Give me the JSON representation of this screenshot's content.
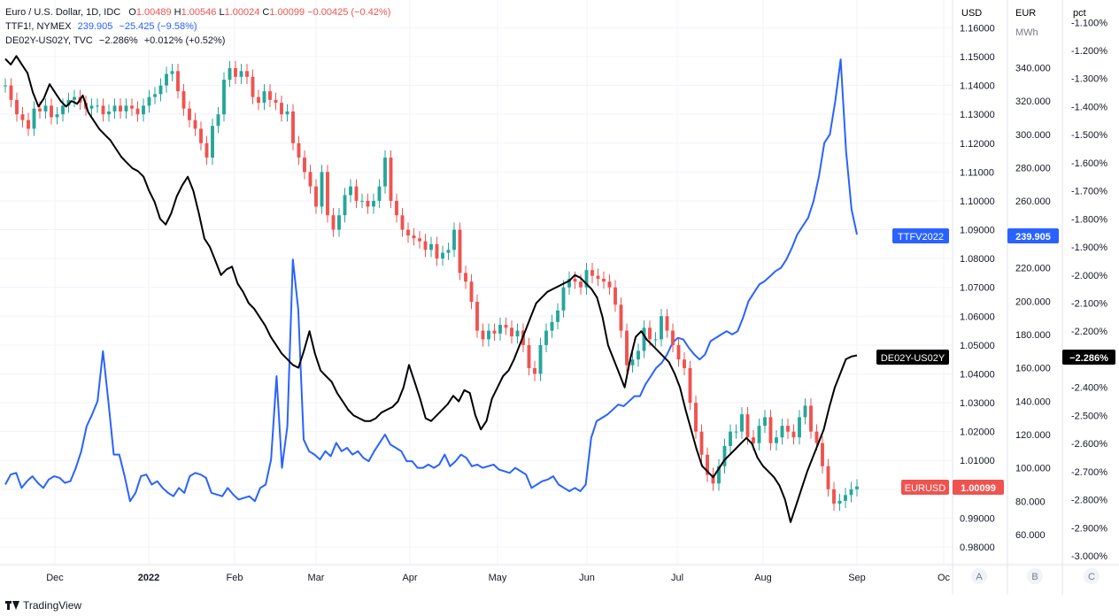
{
  "legend": {
    "eurusd": {
      "title": "Euro / U.S. Dollar, 1D, IDC",
      "o_label": "O",
      "o": "1.00489",
      "h_label": "H",
      "h": "1.00546",
      "l_label": "L",
      "l": "1.00024",
      "c_label": "C",
      "c": "1.00099",
      "chg": "−0.00425 (−0.42%)"
    },
    "ttf": {
      "title": "TTF1!, NYMEX",
      "value": "239.905",
      "chg": "−25.425 (−9.58%)"
    },
    "spread": {
      "title": "DE02Y-US02Y, TVC",
      "value": "−2.286%",
      "chg": "+0.012% (+0.52%)"
    }
  },
  "axes": {
    "a_header": "USD",
    "b_header": "EUR",
    "b_subheader": "MWh",
    "c_header": "pct",
    "a_button": "A",
    "b_button": "B",
    "c_button": "C"
  },
  "labels": {
    "ttf_tag": "TTFV2022",
    "ttf_price": "239.905",
    "spread_tag": "DE02Y-US02Y",
    "spread_price": "−2.286%",
    "eurusd_tag": "EURUSD",
    "eurusd_price": "1.00099"
  },
  "branding": {
    "name": "TradingView"
  },
  "colors": {
    "up": "#26a69a",
    "down": "#ef5350",
    "ttf": "#2962ff",
    "spread": "#000000",
    "grid": "#f0f3fa",
    "axis_text": "#131722"
  },
  "chart_data": {
    "type": "line",
    "x_ticks": [
      "Dec",
      "2022",
      "Feb",
      "Mar",
      "Apr",
      "May",
      "Jun",
      "Jul",
      "Aug",
      "Sep",
      "Oc"
    ],
    "usd_axis": {
      "ticks": [
        "1.16000",
        "1.15000",
        "1.14000",
        "1.13000",
        "1.12000",
        "1.11000",
        "1.10000",
        "1.09000",
        "1.08000",
        "1.07000",
        "1.06000",
        "1.05000",
        "1.04000",
        "1.03000",
        "1.02000",
        "1.01000",
        "1.00000",
        "0.99000",
        "0.98000"
      ],
      "range": [
        0.975,
        1.165
      ]
    },
    "eur_axis": {
      "ticks": [
        "340.000",
        "320.000",
        "300.000",
        "280.000",
        "260.000",
        "240.000",
        "220.000",
        "200.000",
        "180.000",
        "160.000",
        "140.000",
        "120.000",
        "100.000",
        "80.000",
        "60.000"
      ],
      "range": [
        50,
        370
      ]
    },
    "pct_axis": {
      "ticks": [
        "-1.100%",
        "-1.200%",
        "-1.300%",
        "-1.400%",
        "-1.500%",
        "-1.600%",
        "-1.700%",
        "-1.800%",
        "-1.900%",
        "-2.000%",
        "-2.100%",
        "-2.200%",
        "-2.300%",
        "-2.400%",
        "-2.500%",
        "-2.600%",
        "-2.700%",
        "-2.800%",
        "-2.900%",
        "-3.000%"
      ],
      "range": [
        -3.02,
        -1.05
      ]
    },
    "series": [
      {
        "name": "EURUSD",
        "axis": "usd",
        "style": "candlestick",
        "values": [
          1.14,
          1.135,
          1.13,
          1.128,
          1.125,
          1.132,
          1.131,
          1.133,
          1.129,
          1.13,
          1.133,
          1.135,
          1.136,
          1.134,
          1.132,
          1.133,
          1.133,
          1.13,
          1.131,
          1.133,
          1.131,
          1.133,
          1.132,
          1.13,
          1.133,
          1.136,
          1.137,
          1.14,
          1.144,
          1.145,
          1.138,
          1.132,
          1.128,
          1.125,
          1.12,
          1.115,
          1.126,
          1.13,
          1.142,
          1.146,
          1.143,
          1.145,
          1.143,
          1.136,
          1.134,
          1.138,
          1.135,
          1.134,
          1.13,
          1.131,
          1.12,
          1.115,
          1.11,
          1.105,
          1.098,
          1.11,
          1.095,
          1.09,
          1.095,
          1.102,
          1.105,
          1.1,
          1.1,
          1.098,
          1.1,
          1.105,
          1.115,
          1.1,
          1.095,
          1.09,
          1.088,
          1.087,
          1.086,
          1.083,
          1.085,
          1.08,
          1.082,
          1.083,
          1.09,
          1.075,
          1.072,
          1.065,
          1.055,
          1.052,
          1.055,
          1.054,
          1.057,
          1.056,
          1.053,
          1.055,
          1.05,
          1.042,
          1.04,
          1.05,
          1.055,
          1.058,
          1.062,
          1.07,
          1.073,
          1.072,
          1.07,
          1.076,
          1.074,
          1.073,
          1.072,
          1.07,
          1.064,
          1.055,
          1.043,
          1.045,
          1.048,
          1.056,
          1.052,
          1.052,
          1.06,
          1.055,
          1.05,
          1.045,
          1.042,
          1.03,
          1.02,
          1.012,
          1.005,
          1.002,
          1.008,
          1.015,
          1.02,
          1.02,
          1.026,
          1.018,
          1.016,
          1.022,
          1.025,
          1.016,
          1.018,
          1.022,
          1.02,
          1.018,
          1.025,
          1.029,
          1.02,
          1.016,
          1.008,
          1.0,
          0.995,
          0.996,
          0.998,
          1.0,
          1.001
        ]
      },
      {
        "name": "TTFV2022",
        "axis": "eur",
        "style": "line",
        "values": [
          90,
          96,
          97,
          88,
          92,
          95,
          91,
          88,
          93,
          95,
          94,
          91,
          92,
          100,
          110,
          125,
          132,
          140,
          170,
          140,
          108,
          108,
          95,
          80,
          85,
          95,
          96,
          90,
          92,
          88,
          85,
          83,
          88,
          85,
          95,
          97,
          96,
          94,
          85,
          84,
          83,
          88,
          84,
          81,
          82,
          83,
          80,
          88,
          90,
          105,
          155,
          100,
          125,
          225,
          195,
          117,
          110,
          108,
          105,
          110,
          107,
          115,
          110,
          112,
          108,
          110,
          106,
          104,
          110,
          115,
          120,
          114,
          112,
          110,
          104,
          104,
          100,
          100,
          102,
          100,
          102,
          108,
          101,
          104,
          108,
          106,
          101,
          102,
          100,
          101,
          102,
          99,
          98,
          97,
          100,
          98,
          96,
          88,
          90,
          92,
          93,
          95,
          90,
          88,
          86,
          88,
          86,
          90,
          118,
          128,
          130,
          132,
          135,
          138,
          137,
          140,
          143,
          143,
          150,
          155,
          160,
          163,
          168,
          175,
          178,
          177,
          172,
          168,
          165,
          168,
          176,
          178,
          180,
          182,
          180,
          182,
          190,
          200,
          205,
          210,
          212,
          215,
          218,
          220,
          225,
          232,
          240,
          245,
          250,
          260,
          275,
          295,
          300,
          320,
          345,
          290,
          255,
          240
        ]
      },
      {
        "name": "DE02Y-US02Y",
        "axis": "pct",
        "style": "line",
        "values": [
          -1.23,
          -1.25,
          -1.22,
          -1.25,
          -1.28,
          -1.35,
          -1.4,
          -1.37,
          -1.32,
          -1.35,
          -1.38,
          -1.4,
          -1.38,
          -1.39,
          -1.36,
          -1.42,
          -1.45,
          -1.48,
          -1.5,
          -1.52,
          -1.55,
          -1.58,
          -1.6,
          -1.62,
          -1.63,
          -1.65,
          -1.7,
          -1.74,
          -1.8,
          -1.82,
          -1.78,
          -1.72,
          -1.68,
          -1.65,
          -1.7,
          -1.78,
          -1.87,
          -1.9,
          -1.95,
          -2.0,
          -1.98,
          -1.97,
          -2.03,
          -2.06,
          -2.1,
          -2.12,
          -2.15,
          -2.18,
          -2.22,
          -2.25,
          -2.28,
          -2.3,
          -2.32,
          -2.33,
          -2.27,
          -2.2,
          -2.28,
          -2.34,
          -2.36,
          -2.38,
          -2.42,
          -2.45,
          -2.48,
          -2.5,
          -2.51,
          -2.52,
          -2.52,
          -2.51,
          -2.49,
          -2.48,
          -2.47,
          -2.45,
          -2.4,
          -2.32,
          -2.38,
          -2.44,
          -2.51,
          -2.52,
          -2.5,
          -2.48,
          -2.46,
          -2.43,
          -2.45,
          -2.41,
          -2.42,
          -2.5,
          -2.55,
          -2.52,
          -2.44,
          -2.4,
          -2.36,
          -2.34,
          -2.3,
          -2.25,
          -2.2,
          -2.15,
          -2.1,
          -2.08,
          -2.06,
          -2.05,
          -2.04,
          -2.03,
          -2.02,
          -2.0,
          -2.01,
          -2.03,
          -2.05,
          -2.08,
          -2.15,
          -2.25,
          -2.3,
          -2.35,
          -2.4,
          -2.3,
          -2.22,
          -2.2,
          -2.23,
          -2.25,
          -2.27,
          -2.29,
          -2.31,
          -2.35,
          -2.4,
          -2.48,
          -2.55,
          -2.62,
          -2.68,
          -2.7,
          -2.72,
          -2.69,
          -2.66,
          -2.64,
          -2.62,
          -2.6,
          -2.58,
          -2.6,
          -2.65,
          -2.68,
          -2.7,
          -2.72,
          -2.75,
          -2.8,
          -2.88,
          -2.82,
          -2.76,
          -2.7,
          -2.65,
          -2.6,
          -2.55,
          -2.47,
          -2.4,
          -2.35,
          -2.3,
          -2.29,
          -2.286
        ]
      }
    ]
  }
}
